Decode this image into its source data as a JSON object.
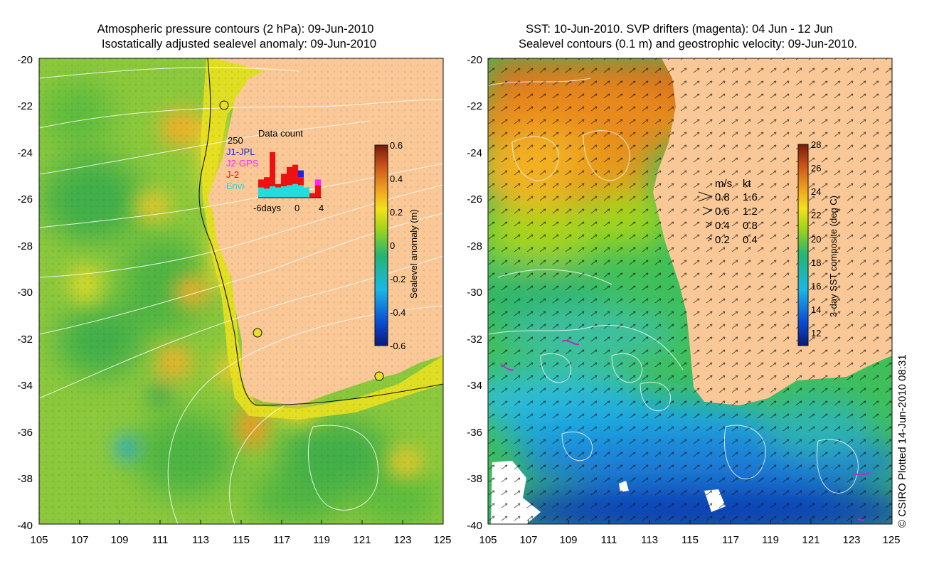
{
  "chart_data": [
    {
      "type": "heatmap",
      "title_line1": "Atmospheric pressure contours (2 hPa): 09-Jun-2010",
      "title_line2": "Isostatically adjusted sealevel anomaly: 09-Jun-2010",
      "x_ticks": [
        "105",
        "107",
        "109",
        "111",
        "113",
        "115",
        "117",
        "119",
        "121",
        "123",
        "125"
      ],
      "y_ticks": [
        "-20",
        "-22",
        "-24",
        "-26",
        "-28",
        "-30",
        "-32",
        "-34",
        "-36",
        "-38",
        "-40"
      ],
      "xlim": [
        105,
        125
      ],
      "ylim": [
        -40,
        -20
      ],
      "colorbar": {
        "label": "Sealevel anomaly (m)",
        "ticks": [
          "0.6",
          "0.4",
          "0.2",
          "0",
          "-0.2",
          "-0.4",
          "-0.6"
        ],
        "range": [
          -0.6,
          0.6
        ],
        "colors": [
          "#0a1a7a",
          "#0b4fd6",
          "#1ab7e6",
          "#22b573",
          "#9fd41a",
          "#f2e21a",
          "#f0a020",
          "#c8501a",
          "#7a1a0a"
        ]
      },
      "inset": {
        "title": "Data count",
        "ymax_label": "250",
        "x_labels": [
          "-6days",
          "0",
          "4"
        ],
        "legend": [
          {
            "label": "J1-JPL",
            "color": "#2222dd"
          },
          {
            "label": "J2-GPS",
            "color": "#ff22ff"
          },
          {
            "label": "J-2",
            "color": "#ee1111"
          },
          {
            "label": "Envi",
            "color": "#22dddd"
          }
        ],
        "bars": [
          {
            "day": -6,
            "envi": 45,
            "j2": 35,
            "jpl": 0,
            "gps": 0
          },
          {
            "day": -5,
            "envi": 40,
            "j2": 50,
            "jpl": 0,
            "gps": 0
          },
          {
            "day": -4,
            "envi": 50,
            "j2": 150,
            "jpl": 0,
            "gps": 0
          },
          {
            "day": -3,
            "envi": 45,
            "j2": 15,
            "jpl": 0,
            "gps": 0
          },
          {
            "day": -2,
            "envi": 50,
            "j2": 55,
            "jpl": 0,
            "gps": 0
          },
          {
            "day": -1,
            "envi": 55,
            "j2": 80,
            "jpl": 0,
            "gps": 0
          },
          {
            "day": 0,
            "envi": 60,
            "j2": 85,
            "jpl": 0,
            "gps": 0
          },
          {
            "day": 1,
            "envi": 55,
            "j2": 35,
            "jpl": 30,
            "gps": 0
          },
          {
            "day": 2,
            "envi": 45,
            "j2": 0,
            "jpl": 0,
            "gps": 0
          },
          {
            "day": 3,
            "envi": 0,
            "j2": 20,
            "jpl": 0,
            "gps": 0
          },
          {
            "day": 4,
            "envi": 0,
            "j2": 55,
            "jpl": 0,
            "gps": 25
          }
        ]
      }
    },
    {
      "type": "heatmap",
      "title_line1": "SST: 10-Jun-2010. SVP drifters (magenta): 04 Jun - 12 Jun",
      "title_line2": "Sealevel contours (0.1 m) and geostrophic velocity: 09-Jun-2010.",
      "x_ticks": [
        "105",
        "107",
        "109",
        "111",
        "113",
        "115",
        "117",
        "119",
        "121",
        "123",
        "125"
      ],
      "y_ticks": [
        "-20",
        "-22",
        "-24",
        "-26",
        "-28",
        "-30",
        "-32",
        "-34",
        "-36",
        "-38",
        "-40"
      ],
      "xlim": [
        105,
        125
      ],
      "ylim": [
        -40,
        -20
      ],
      "colorbar": {
        "label": "3-day SST composite (deg C)",
        "ticks": [
          "28",
          "26",
          "24",
          "22",
          "20",
          "18",
          "16",
          "14",
          "12"
        ],
        "range": [
          11,
          28
        ],
        "colors": [
          "#0a1a7a",
          "#0b4fd6",
          "#1ab7e6",
          "#22b573",
          "#9fd41a",
          "#f2e21a",
          "#f0a020",
          "#c8501a",
          "#7a1a0a"
        ]
      },
      "velocity_legend": {
        "header_ms": "m/s",
        "header_kt": "kt",
        "rows": [
          {
            "ms": "0.8",
            "kt": "1.6"
          },
          {
            "ms": "0.6",
            "kt": "1.2"
          },
          {
            "ms": "0.4",
            "kt": "0.8"
          },
          {
            "ms": "0.2",
            "kt": "0.4"
          }
        ]
      },
      "credit": "© CSIRO Plotted 14-Jun-2010 08:31"
    }
  ]
}
